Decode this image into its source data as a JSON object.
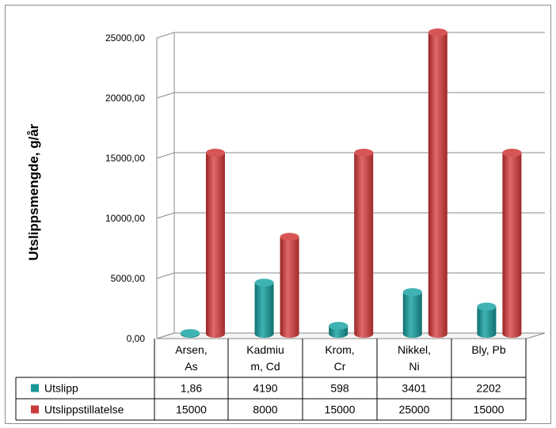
{
  "chart_data": {
    "type": "bar",
    "ylabel": "Utslippsmengde, g/år",
    "ylim": [
      0,
      25000
    ],
    "ytick_labels": [
      "0,00",
      "5000,00",
      "10000,00",
      "15000,00",
      "20000,00",
      "25000,00"
    ],
    "ytick_values": [
      0,
      5000,
      10000,
      15000,
      20000,
      25000
    ],
    "categories": [
      [
        "Arsen,",
        "As"
      ],
      [
        "Kadmiu",
        "m, Cd"
      ],
      [
        "Krom,",
        "Cr"
      ],
      [
        "Nikkel,",
        "Ni"
      ],
      [
        "Bly, Pb"
      ]
    ],
    "series": [
      {
        "name": "Utslipp",
        "color": "#1a9696",
        "values": [
          1.86,
          4190,
          598,
          3401,
          2202
        ],
        "value_labels": [
          "1,86",
          "4190",
          "598",
          "3401",
          "2202"
        ]
      },
      {
        "name": "Utslippstillatelse",
        "color": "#cc3b3b",
        "values": [
          15000,
          8000,
          15000,
          25000,
          15000
        ],
        "value_labels": [
          "15000",
          "8000",
          "15000",
          "25000",
          "15000"
        ]
      }
    ],
    "grid": true,
    "legend": "data-table"
  }
}
